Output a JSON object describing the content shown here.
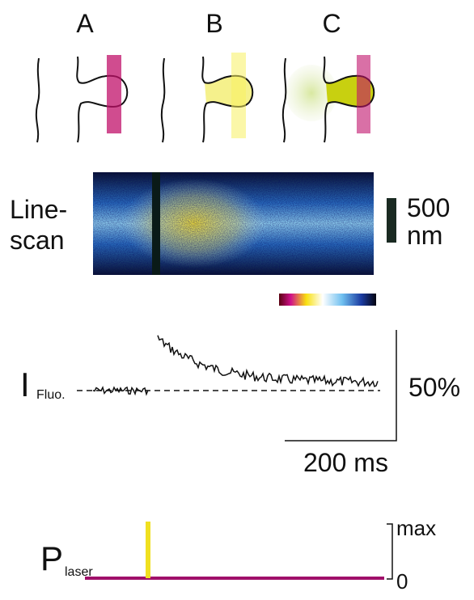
{
  "panels": [
    {
      "label": "A"
    },
    {
      "label": "B"
    },
    {
      "label": "C"
    }
  ],
  "linescan": {
    "label_line1": "Line-",
    "label_line2": "scan",
    "scale_value": "500",
    "scale_unit": "nm"
  },
  "fluorescence": {
    "symbol": "I",
    "subscript": "Fluo.",
    "y_scale": "50%",
    "x_scale": "200 ms"
  },
  "laser": {
    "symbol": "P",
    "subscript": "laser",
    "max_label": "max",
    "min_label": "0"
  }
}
